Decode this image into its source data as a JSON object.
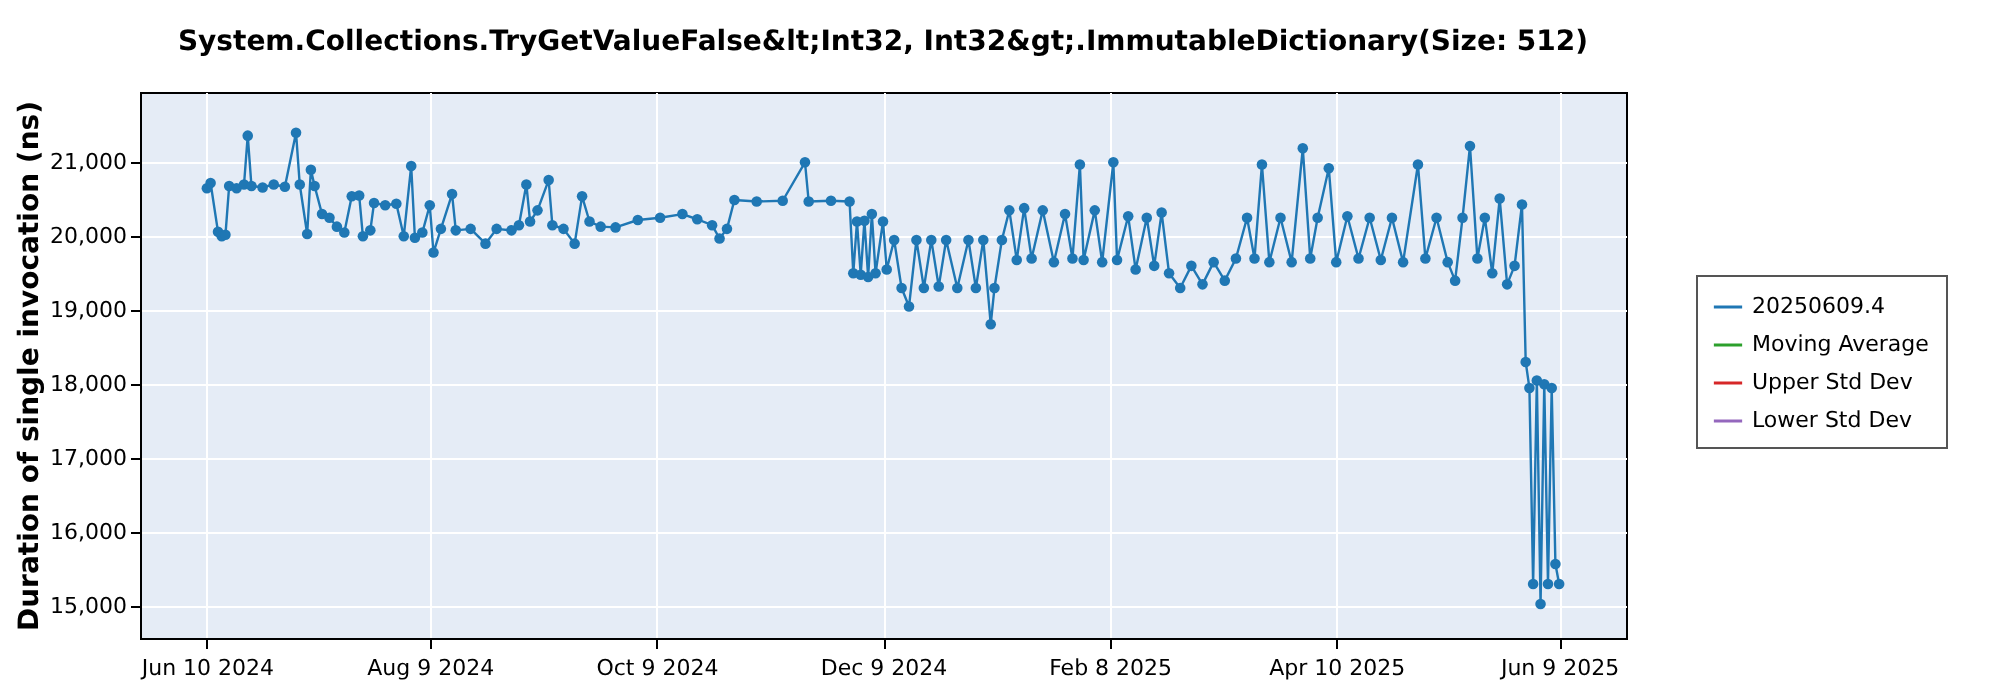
{
  "chart_data": {
    "type": "line",
    "title": "System.Collections.TryGetValueFalse&lt;Int32, Int32&gt;.ImmutableDictionary(Size: 512)",
    "ylabel": "Duration of single invocation (ns)",
    "x": [
      "2024-06-10",
      "2024-06-11",
      "2024-06-13",
      "2024-06-14",
      "2024-06-15",
      "2024-06-16",
      "2024-06-18",
      "2024-06-20",
      "2024-06-21",
      "2024-06-22",
      "2024-06-25",
      "2024-06-28",
      "2024-07-01",
      "2024-07-04",
      "2024-07-05",
      "2024-07-07",
      "2024-07-08",
      "2024-07-09",
      "2024-07-11",
      "2024-07-13",
      "2024-07-15",
      "2024-07-17",
      "2024-07-19",
      "2024-07-21",
      "2024-07-22",
      "2024-07-24",
      "2024-07-25",
      "2024-07-28",
      "2024-07-31",
      "2024-08-02",
      "2024-08-04",
      "2024-08-05",
      "2024-08-07",
      "2024-08-09",
      "2024-08-10",
      "2024-08-12",
      "2024-08-15",
      "2024-08-16",
      "2024-08-20",
      "2024-08-24",
      "2024-08-27",
      "2024-08-31",
      "2024-09-02",
      "2024-09-04",
      "2024-09-05",
      "2024-09-07",
      "2024-09-10",
      "2024-09-11",
      "2024-09-14",
      "2024-09-17",
      "2024-09-19",
      "2024-09-21",
      "2024-09-24",
      "2024-09-28",
      "2024-10-04",
      "2024-10-10",
      "2024-10-16",
      "2024-10-20",
      "2024-10-24",
      "2024-10-26",
      "2024-10-28",
      "2024-10-30",
      "2024-11-05",
      "2024-11-12",
      "2024-11-18",
      "2024-11-19",
      "2024-11-25",
      "2024-11-30",
      "2024-12-01",
      "2024-12-02",
      "2024-12-03",
      "2024-12-04",
      "2024-12-05",
      "2024-12-06",
      "2024-12-07",
      "2024-12-09",
      "2024-12-10",
      "2024-12-12",
      "2024-12-14",
      "2024-12-16",
      "2024-12-18",
      "2024-12-20",
      "2024-12-22",
      "2024-12-24",
      "2024-12-26",
      "2024-12-29",
      "2025-01-01",
      "2025-01-03",
      "2025-01-05",
      "2025-01-07",
      "2025-01-08",
      "2025-01-10",
      "2025-01-12",
      "2025-01-14",
      "2025-01-16",
      "2025-01-18",
      "2025-01-21",
      "2025-01-24",
      "2025-01-27",
      "2025-01-29",
      "2025-01-31",
      "2025-02-01",
      "2025-02-04",
      "2025-02-06",
      "2025-02-09",
      "2025-02-10",
      "2025-02-13",
      "2025-02-15",
      "2025-02-18",
      "2025-02-20",
      "2025-02-22",
      "2025-02-24",
      "2025-02-27",
      "2025-03-02",
      "2025-03-05",
      "2025-03-08",
      "2025-03-11",
      "2025-03-14",
      "2025-03-17",
      "2025-03-19",
      "2025-03-21",
      "2025-03-23",
      "2025-03-26",
      "2025-03-29",
      "2025-04-01",
      "2025-04-03",
      "2025-04-05",
      "2025-04-08",
      "2025-04-10",
      "2025-04-13",
      "2025-04-16",
      "2025-04-19",
      "2025-04-22",
      "2025-04-25",
      "2025-04-28",
      "2025-05-02",
      "2025-05-04",
      "2025-05-07",
      "2025-05-10",
      "2025-05-12",
      "2025-05-14",
      "2025-05-16",
      "2025-05-18",
      "2025-05-20",
      "2025-05-22",
      "2025-05-24",
      "2025-05-26",
      "2025-05-28",
      "2025-05-30",
      "2025-05-31",
      "2025-06-01",
      "2025-06-02",
      "2025-06-03",
      "2025-06-04",
      "2025-06-05",
      "2025-06-06",
      "2025-06-07",
      "2025-06-08",
      "2025-06-09"
    ],
    "series": [
      {
        "name": "20250609.4",
        "color": "#1f77b4",
        "values": [
          20650,
          20720,
          20060,
          20000,
          20020,
          20680,
          20650,
          20700,
          21360,
          20680,
          20660,
          20700,
          20670,
          21400,
          20700,
          20030,
          20900,
          20680,
          20300,
          20250,
          20130,
          20050,
          20540,
          20550,
          20000,
          20080,
          20450,
          20420,
          20440,
          20000,
          20950,
          19980,
          20050,
          20420,
          19780,
          20100,
          20570,
          20080,
          20100,
          19900,
          20100,
          20080,
          20150,
          20700,
          20200,
          20350,
          20760,
          20150,
          20100,
          19900,
          20540,
          20200,
          20130,
          20120,
          20220,
          20250,
          20300,
          20230,
          20150,
          19970,
          20100,
          20490,
          20470,
          20480,
          21000,
          20470,
          20480,
          20470,
          19500,
          20200,
          19480,
          20210,
          19450,
          20300,
          19500,
          20200,
          19550,
          19950,
          19300,
          19050,
          19950,
          19300,
          19950,
          19320,
          19950,
          19300,
          19950,
          19300,
          19950,
          18810,
          19300,
          19950,
          20350,
          19680,
          20380,
          19700,
          20350,
          19650,
          20300,
          19700,
          20970,
          19680,
          20350,
          19650,
          21000,
          19680,
          20270,
          19550,
          20250,
          19600,
          20320,
          19500,
          19300,
          19600,
          19350,
          19650,
          19400,
          19700,
          20250,
          19700,
          20970,
          19650,
          20250,
          19650,
          21190,
          19700,
          20250,
          20920,
          19650,
          20270,
          19700,
          20250,
          19680,
          20250,
          19650,
          20970,
          19700,
          20250,
          19650,
          19400,
          20250,
          21220,
          19700,
          20250,
          19500,
          20510,
          19350,
          19600,
          20430,
          18300,
          17950,
          15300,
          18050,
          15030,
          18000,
          15300,
          17950,
          15570,
          15300
        ]
      },
      {
        "name": "Moving Average",
        "color": "#2ca02c",
        "values": [
          null,
          null,
          null,
          null,
          null,
          null,
          null,
          null,
          null,
          null,
          null,
          null,
          null,
          null,
          null,
          null,
          null,
          null,
          null,
          null,
          null,
          null,
          null,
          null,
          null,
          null,
          null,
          null,
          null,
          null,
          null,
          null,
          null,
          null,
          null,
          null,
          null,
          null,
          null,
          null,
          null,
          null,
          null,
          null,
          null,
          null,
          null,
          null,
          null,
          null,
          null,
          null,
          null,
          null,
          null,
          null,
          null,
          null,
          null,
          null,
          null,
          null,
          null,
          null,
          null,
          null,
          null,
          null,
          null,
          null,
          null,
          null,
          null,
          null,
          null,
          null,
          null,
          null,
          null,
          null,
          null,
          null,
          null,
          null,
          null,
          null,
          null,
          null,
          null,
          null,
          null,
          null,
          null,
          null,
          null,
          null,
          null,
          null,
          null,
          null,
          null,
          null,
          null,
          null,
          null,
          null,
          null,
          null,
          null,
          null,
          null,
          null,
          null,
          null,
          null,
          null,
          null,
          null,
          null,
          null,
          null,
          null,
          null,
          null,
          null,
          null,
          null,
          null,
          null,
          null,
          null,
          null,
          null,
          null,
          null,
          null,
          null,
          null,
          null,
          null,
          null,
          null,
          null,
          null,
          null,
          null,
          null,
          null,
          null,
          null,
          null,
          null,
          null,
          null,
          null,
          null,
          null,
          null,
          null
        ]
      },
      {
        "name": "Upper Std Dev",
        "color": "#d62728",
        "values": [
          null,
          null,
          null,
          null,
          null,
          null,
          null,
          null,
          null,
          null,
          null,
          null,
          null,
          null,
          null,
          null,
          null,
          null,
          null,
          null,
          null,
          null,
          null,
          null,
          null,
          null,
          null,
          null,
          null,
          null,
          null,
          null,
          null,
          null,
          null,
          null,
          null,
          null,
          null,
          null,
          null,
          null,
          null,
          null,
          null,
          null,
          null,
          null,
          null,
          null,
          null,
          null,
          null,
          null,
          null,
          null,
          null,
          null,
          null,
          null,
          null,
          null,
          null,
          null,
          null,
          null,
          null,
          null,
          null,
          null,
          null,
          null,
          null,
          null,
          null,
          null,
          null,
          null,
          null,
          null,
          null,
          null,
          null,
          null,
          null,
          null,
          null,
          null,
          null,
          null,
          null,
          null,
          null,
          null,
          null,
          null,
          null,
          null,
          null,
          null,
          null,
          null,
          null,
          null,
          null,
          null,
          null,
          null,
          null,
          null,
          null,
          null,
          null,
          null,
          null,
          null,
          null,
          null,
          null,
          null,
          null,
          null,
          null,
          null,
          null,
          null,
          null,
          null,
          null,
          null,
          null,
          null,
          null,
          null,
          null,
          null,
          null,
          null,
          null,
          null,
          null,
          null,
          null,
          null,
          null,
          null,
          null,
          null,
          null,
          null,
          null,
          null,
          null,
          null,
          null,
          null,
          null,
          null,
          null
        ]
      },
      {
        "name": "Lower Std Dev",
        "color": "#9467bd",
        "values": [
          null,
          null,
          null,
          null,
          null,
          null,
          null,
          null,
          null,
          null,
          null,
          null,
          null,
          null,
          null,
          null,
          null,
          null,
          null,
          null,
          null,
          null,
          null,
          null,
          null,
          null,
          null,
          null,
          null,
          null,
          null,
          null,
          null,
          null,
          null,
          null,
          null,
          null,
          null,
          null,
          null,
          null,
          null,
          null,
          null,
          null,
          null,
          null,
          null,
          null,
          null,
          null,
          null,
          null,
          null,
          null,
          null,
          null,
          null,
          null,
          null,
          null,
          null,
          null,
          null,
          null,
          null,
          null,
          null,
          null,
          null,
          null,
          null,
          null,
          null,
          null,
          null,
          null,
          null,
          null,
          null,
          null,
          null,
          null,
          null,
          null,
          null,
          null,
          null,
          null,
          null,
          null,
          null,
          null,
          null,
          null,
          null,
          null,
          null,
          null,
          null,
          null,
          null,
          null,
          null,
          null,
          null,
          null,
          null,
          null,
          null,
          null,
          null,
          null,
          null,
          null,
          null,
          null,
          null,
          null,
          null,
          null,
          null,
          null,
          null,
          null,
          null,
          null,
          null,
          null,
          null,
          null,
          null,
          null,
          null,
          null,
          null,
          null,
          null,
          null,
          null,
          null,
          null,
          null,
          null,
          null,
          null,
          null,
          null,
          null,
          null,
          null,
          null,
          null,
          null,
          null,
          null,
          null,
          null
        ]
      }
    ],
    "xlim": [
      "2024-05-23",
      "2025-06-27"
    ],
    "xticks": [
      {
        "value": "2024-06-10",
        "label": "Jun 10 2024"
      },
      {
        "value": "2024-08-09",
        "label": "Aug 9 2024"
      },
      {
        "value": "2024-10-09",
        "label": "Oct 9 2024"
      },
      {
        "value": "2024-12-09",
        "label": "Dec 9 2024"
      },
      {
        "value": "2025-02-08",
        "label": "Feb 8 2025"
      },
      {
        "value": "2025-04-10",
        "label": "Apr 10 2025"
      },
      {
        "value": "2025-06-09",
        "label": "Jun 9 2025"
      }
    ],
    "ylim": [
      14570,
      21950
    ],
    "yticks": [
      {
        "value": 15000,
        "label": "15,000"
      },
      {
        "value": 16000,
        "label": "16,000"
      },
      {
        "value": 17000,
        "label": "17,000"
      },
      {
        "value": 18000,
        "label": "18,000"
      },
      {
        "value": 19000,
        "label": "19,000"
      },
      {
        "value": 20000,
        "label": "20,000"
      },
      {
        "value": 21000,
        "label": "21,000"
      }
    ],
    "grid": true,
    "legend": "right",
    "marker": "circle",
    "line_style": "solid"
  }
}
